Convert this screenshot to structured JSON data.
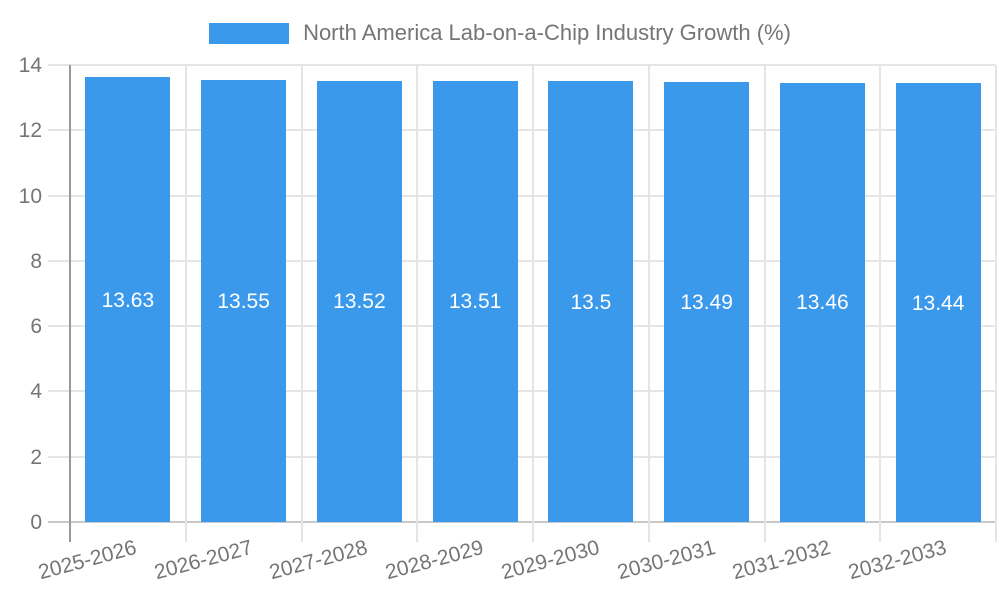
{
  "chart_data": {
    "type": "bar",
    "legend_label": "North America Lab-on-a-Chip Industry Growth (%)",
    "categories": [
      "2025-2026",
      "2026-2027",
      "2027-2028",
      "2028-2029",
      "2029-2030",
      "2030-2031",
      "2031-2032",
      "2032-2033"
    ],
    "values": [
      13.63,
      13.55,
      13.52,
      13.51,
      13.5,
      13.49,
      13.46,
      13.44
    ],
    "value_labels": [
      "13.63",
      "13.55",
      "13.52",
      "13.51",
      "13.5",
      "13.49",
      "13.46",
      "13.44"
    ],
    "xlabel": "",
    "ylabel": "",
    "ylim": [
      0,
      14
    ],
    "yticks": [
      0,
      2,
      4,
      6,
      8,
      10,
      12,
      14
    ],
    "grid": true,
    "legend_position": "top",
    "colors": {
      "bar": "#3b99ec",
      "gridline": "#e5e5e5",
      "axis_line": "#999999",
      "baseline": "#c8c8c8",
      "tick_text": "#757575",
      "value_text": "#ffffff",
      "background": "#ffffff"
    }
  }
}
